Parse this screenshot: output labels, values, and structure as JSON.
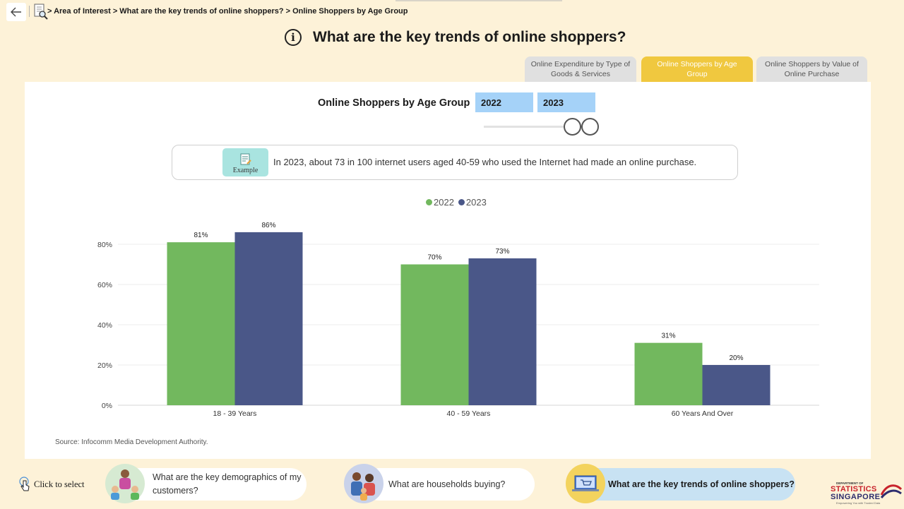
{
  "breadcrumb": {
    "text": "> Area of Interest > What are the key trends of online shoppers? > Online Shoppers by Age Group"
  },
  "title": "What are the key trends of online shoppers?",
  "tabs": [
    {
      "label": "Online Expenditure by Type of Goods & Services"
    },
    {
      "label": "Online Shoppers by Age Group"
    },
    {
      "label": "Online Shoppers by Value of Online Purchase"
    }
  ],
  "panel": {
    "heading": "Online Shoppers by Age Group",
    "year_from": "2022",
    "year_to": "2023",
    "example_label": "Example",
    "example_text": "In 2023, about 73 in 100 internet users aged 40-59 who used the Internet had made an online purchase.",
    "source": "Source: Infocomm Media Development Authority."
  },
  "chart_data": {
    "type": "bar",
    "categories": [
      "18 - 39 Years",
      "40 - 59 Years",
      "60 Years And Over"
    ],
    "series": [
      {
        "name": "2022",
        "values": [
          81,
          70,
          31
        ],
        "labels": [
          "81%",
          "70%",
          "31%"
        ],
        "color": "#72b85e"
      },
      {
        "name": "2023",
        "values": [
          86,
          73,
          20
        ],
        "labels": [
          "86%",
          "73%",
          "20%"
        ],
        "color": "#4a5788"
      }
    ],
    "yticks": [
      "0%",
      "20%",
      "40%",
      "60%",
      "80%"
    ],
    "ytick_values": [
      0,
      20,
      40,
      60,
      80
    ],
    "ylim": [
      0,
      100
    ],
    "grid": true,
    "legend_position": "top-center"
  },
  "bottom_nav": {
    "click_label": "Click to select",
    "items": [
      {
        "label": "What are the key demographics of my customers?"
      },
      {
        "label": "What are households buying?"
      },
      {
        "label": "What are the key trends of online shoppers?"
      }
    ]
  },
  "logo": {
    "small": "DEPARTMENT OF",
    "line1": "STATISTICS",
    "line2": "SINGAPORE",
    "tagline": "Empowering You with Trusted Data"
  }
}
